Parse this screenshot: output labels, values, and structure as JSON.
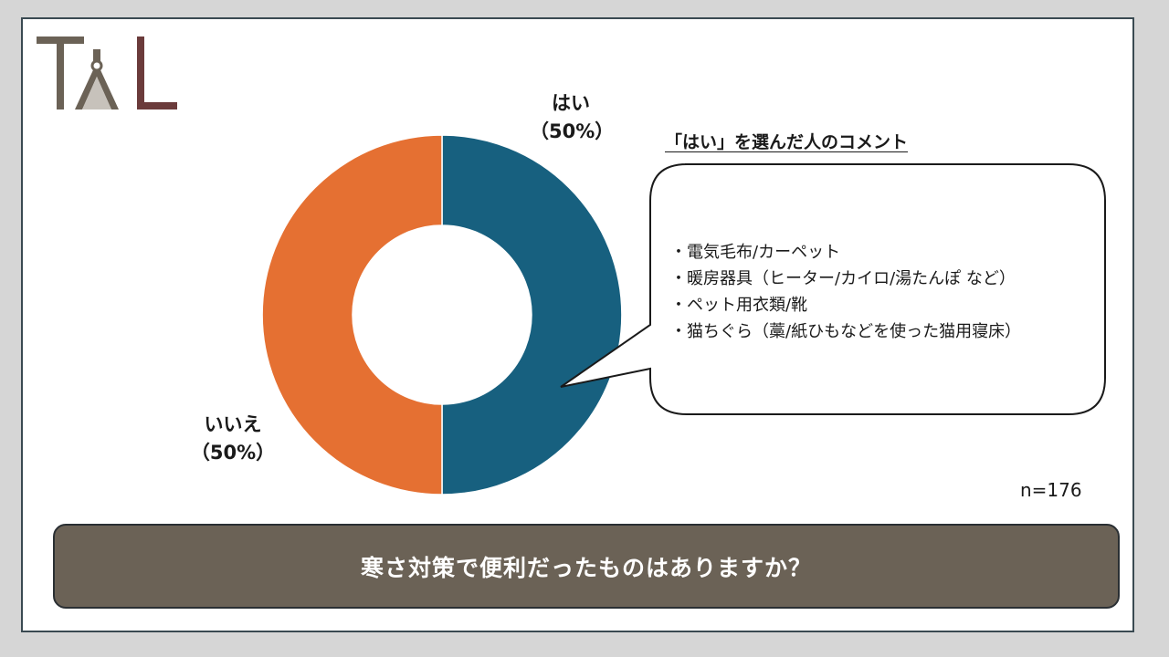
{
  "colors": {
    "yes": "#17607f",
    "no": "#e57032",
    "question_bg": "#6b6256",
    "logo_dark": "#6b6256",
    "logo_red": "#6b3b3b"
  },
  "logo": {
    "text": "TAL"
  },
  "chart_data": {
    "type": "pie",
    "donut": true,
    "categories": [
      "はい",
      "いいえ"
    ],
    "values": [
      50,
      50
    ],
    "labels": [
      {
        "name": "はい",
        "pct": "（50%）"
      },
      {
        "name": "いいえ",
        "pct": "（50%）"
      }
    ],
    "n": "n=176"
  },
  "comments": {
    "title": "「はい」を選んだ人のコメント",
    "items": [
      "電気毛布/カーペット",
      "暖房器具（ヒーター/カイロ/湯たんぽ など）",
      "ペット用衣類/靴",
      "猫ちぐら（藁/紙ひもなどを使った猫用寝床）"
    ]
  },
  "question": "寒さ対策で便利だったものはありますか？"
}
